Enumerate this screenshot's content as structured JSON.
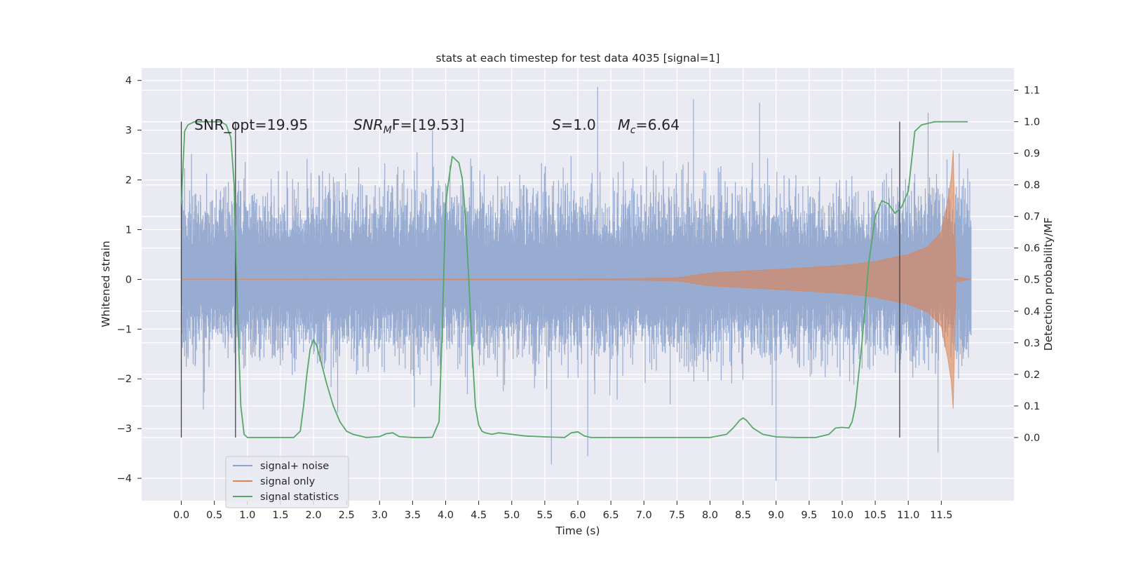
{
  "chart_data": {
    "type": "line",
    "title": "stats at each timestep for test data 4035 [signal=1]",
    "xlabel": "Time (s)",
    "ylabel_left": "Whitened strain",
    "ylabel_right": "Detection probability/MF",
    "xlim": [
      -0.6,
      12.6
    ],
    "ylim_left": [
      -4.45,
      4.25
    ],
    "ylim_right": [
      -0.2,
      1.17
    ],
    "grid": true,
    "legend_position": "lower-left",
    "x_ticks": [
      "0.0",
      "0.5",
      "1.0",
      "1.5",
      "2.0",
      "2.5",
      "3.0",
      "3.5",
      "4.0",
      "4.5",
      "5.0",
      "5.5",
      "6.0",
      "6.5",
      "7.0",
      "7.5",
      "8.0",
      "8.5",
      "9.0",
      "9.5",
      "10.0",
      "10.5",
      "11.0",
      "11.5"
    ],
    "y_left_ticks": [
      "4",
      "3",
      "2",
      "1",
      "0",
      "−1",
      "−2",
      "−3",
      "−4"
    ],
    "y_right_ticks": [
      "1.1",
      "1.0",
      "0.9",
      "0.8",
      "0.7",
      "0.6",
      "0.5",
      "0.4",
      "0.3",
      "0.2",
      "0.1",
      "0.0"
    ],
    "annotations": {
      "snr_opt": "SNR_opt=19.95",
      "snr_mf_main": "SNR",
      "snr_mf_sub": "M",
      "snr_mf_rest": "F=[19.53]",
      "s_var": "S",
      "s_val": "=1.0",
      "mc_var": "M",
      "mc_sub": "c",
      "mc_val": "=6.64"
    },
    "vertical_markers_x": [
      0.0,
      0.82,
      10.87
    ],
    "series": [
      {
        "name": "signal+ noise",
        "color": "#8fa4cd",
        "t_range": [
          0.0,
          11.95
        ],
        "typical_envelope": [
          -2.0,
          2.2
        ],
        "extremes": [
          {
            "x": 6.3,
            "y": 3.87
          },
          {
            "x": 7.75,
            "y": 3.62
          },
          {
            "x": 9.0,
            "y": -4.05
          },
          {
            "x": 5.6,
            "y": -3.72
          },
          {
            "x": 6.15,
            "y": -3.55
          },
          {
            "x": 11.45,
            "y": -3.48
          },
          {
            "x": 11.3,
            "y": 3.35
          },
          {
            "x": 8.75,
            "y": 3.55
          }
        ]
      },
      {
        "name": "signal only",
        "color": "#dd8452",
        "envelope": [
          {
            "x": 0.0,
            "a": 0.0
          },
          {
            "x": 6.5,
            "a": 0.01
          },
          {
            "x": 7.5,
            "a": 0.03
          },
          {
            "x": 8.0,
            "a": 0.13
          },
          {
            "x": 9.0,
            "a": 0.2
          },
          {
            "x": 10.0,
            "a": 0.28
          },
          {
            "x": 10.5,
            "a": 0.36
          },
          {
            "x": 11.0,
            "a": 0.5
          },
          {
            "x": 11.3,
            "a": 0.66
          },
          {
            "x": 11.5,
            "a": 0.95
          },
          {
            "x": 11.6,
            "a": 1.6
          },
          {
            "x": 11.65,
            "a": 2.05
          },
          {
            "x": 11.68,
            "a": 2.6
          },
          {
            "x": 11.72,
            "a": 0.05
          },
          {
            "x": 11.95,
            "a": 0.0
          }
        ]
      },
      {
        "name": "signal statistics",
        "color": "#55a868",
        "x": [
          0.0,
          0.05,
          0.1,
          0.2,
          0.3,
          0.4,
          0.5,
          0.6,
          0.68,
          0.75,
          0.8,
          0.85,
          0.9,
          0.95,
          1.0,
          1.1,
          1.3,
          1.5,
          1.7,
          1.8,
          1.85,
          1.9,
          1.95,
          2.0,
          2.05,
          2.1,
          2.2,
          2.3,
          2.4,
          2.5,
          2.6,
          2.8,
          3.0,
          3.1,
          3.2,
          3.3,
          3.5,
          3.7,
          3.8,
          3.9,
          3.95,
          4.0,
          4.05,
          4.1,
          4.15,
          4.2,
          4.25,
          4.3,
          4.35,
          4.4,
          4.45,
          4.5,
          4.55,
          4.6,
          4.7,
          4.8,
          5.0,
          5.2,
          5.5,
          5.8,
          5.9,
          6.0,
          6.1,
          6.2,
          6.4,
          6.8,
          7.5,
          8.0,
          8.25,
          8.35,
          8.45,
          8.5,
          8.55,
          8.65,
          8.8,
          9.0,
          9.3,
          9.6,
          9.8,
          9.9,
          10.0,
          10.1,
          10.15,
          10.2,
          10.3,
          10.4,
          10.5,
          10.6,
          10.7,
          10.8,
          10.9,
          11.0,
          11.1,
          11.2,
          11.4,
          11.6,
          11.8,
          11.9
        ],
        "y": [
          0.74,
          0.97,
          0.99,
          1.0,
          1.0,
          1.0,
          1.0,
          1.0,
          0.99,
          0.95,
          0.8,
          0.4,
          0.1,
          0.01,
          0.0,
          0.0,
          0.0,
          0.0,
          0.0,
          0.02,
          0.1,
          0.2,
          0.28,
          0.31,
          0.29,
          0.25,
          0.17,
          0.1,
          0.05,
          0.02,
          0.01,
          0.0,
          0.003,
          0.012,
          0.015,
          0.003,
          0.0,
          0.0,
          0.001,
          0.05,
          0.35,
          0.74,
          0.82,
          0.89,
          0.88,
          0.87,
          0.82,
          0.7,
          0.5,
          0.28,
          0.1,
          0.04,
          0.02,
          0.015,
          0.01,
          0.015,
          0.01,
          0.005,
          0.002,
          0.0,
          0.015,
          0.018,
          0.005,
          0.0,
          0.0,
          0.0,
          0.0,
          0.0,
          0.01,
          0.03,
          0.055,
          0.062,
          0.055,
          0.03,
          0.01,
          0.002,
          0.0,
          0.0,
          0.01,
          0.03,
          0.032,
          0.03,
          0.05,
          0.1,
          0.3,
          0.55,
          0.7,
          0.75,
          0.74,
          0.71,
          0.73,
          0.78,
          0.97,
          0.99,
          1.0,
          1.0,
          1.0,
          1.0
        ]
      }
    ]
  }
}
